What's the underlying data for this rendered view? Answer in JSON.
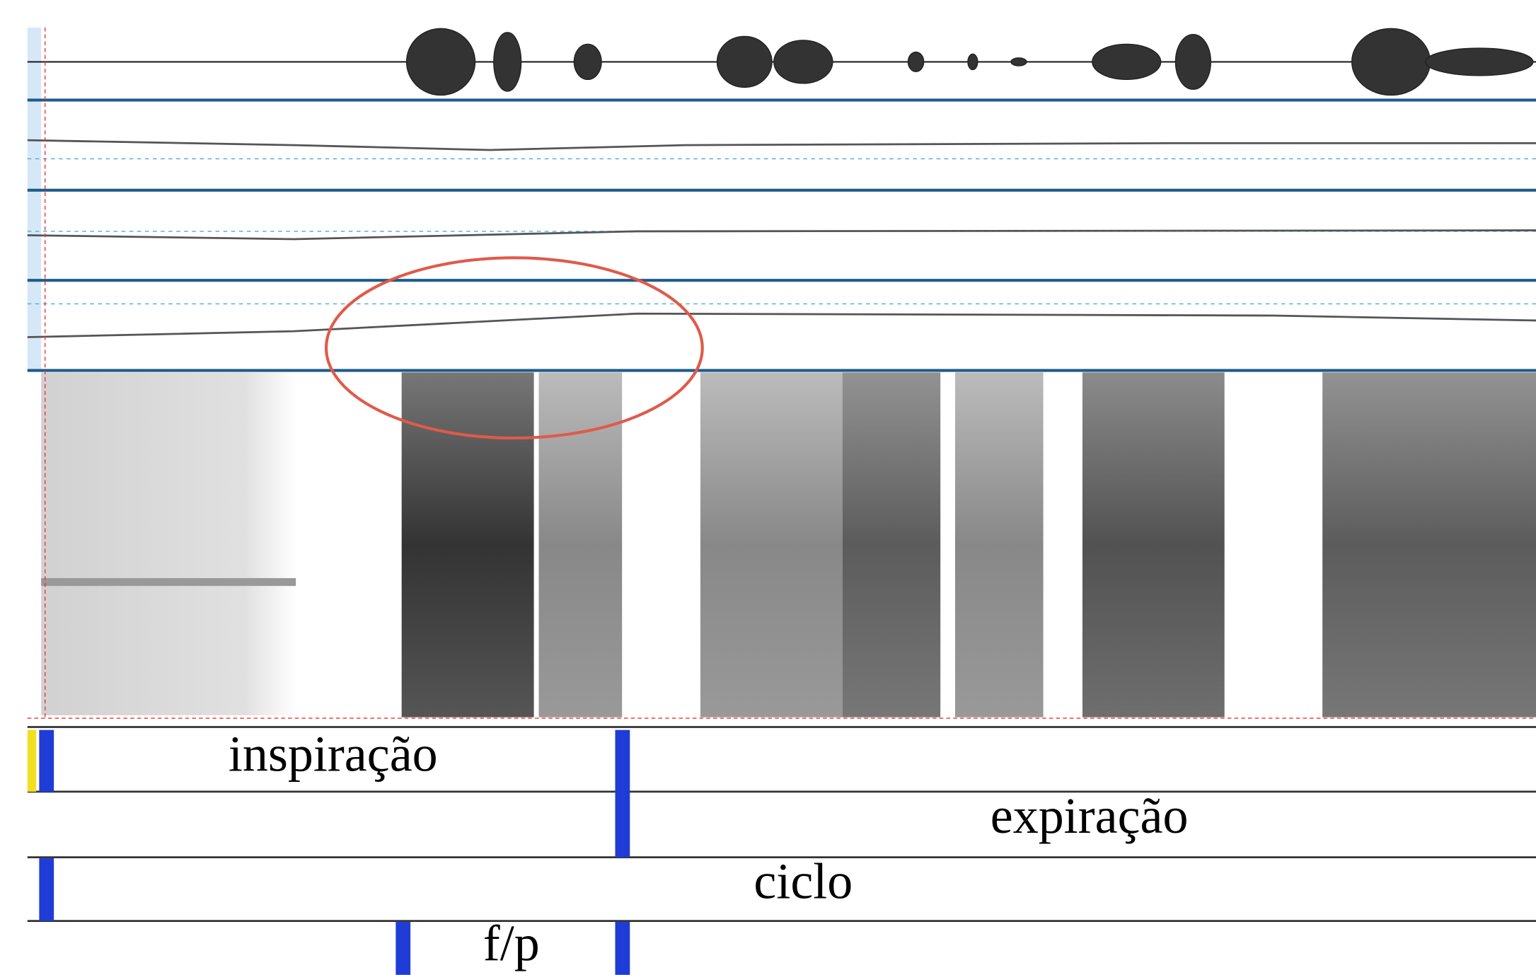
{
  "tiers": [
    {
      "label": "inspiração"
    },
    {
      "label": "expiração"
    },
    {
      "label": "ciclo"
    },
    {
      "label": "f/p"
    }
  ]
}
